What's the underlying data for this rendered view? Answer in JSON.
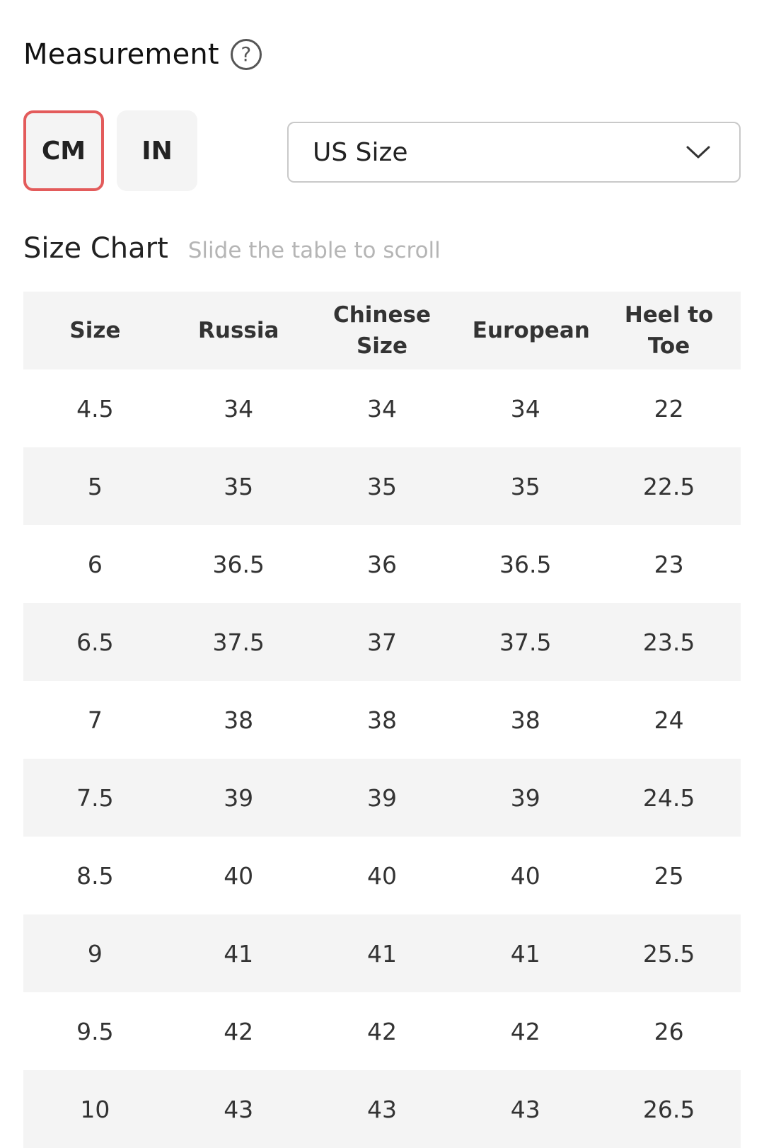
{
  "header": {
    "title": "Measurement",
    "help_icon": "question-circle-icon",
    "help_glyph": "?"
  },
  "units": {
    "options": [
      "CM",
      "IN"
    ],
    "selected": "CM",
    "active_border_color": "#e35b5b"
  },
  "size_select": {
    "value": "US Size",
    "icon": "chevron-down-icon"
  },
  "size_chart": {
    "title": "Size Chart",
    "hint": "Slide the table to scroll",
    "columns": [
      "Size",
      "Russia",
      "Chinese Size",
      "European",
      "Heel to Toe"
    ],
    "rows": [
      [
        "4.5",
        "34",
        "34",
        "34",
        "22"
      ],
      [
        "5",
        "35",
        "35",
        "35",
        "22.5"
      ],
      [
        "6",
        "36.5",
        "36",
        "36.5",
        "23"
      ],
      [
        "6.5",
        "37.5",
        "37",
        "37.5",
        "23.5"
      ],
      [
        "7",
        "38",
        "38",
        "38",
        "24"
      ],
      [
        "7.5",
        "39",
        "39",
        "39",
        "24.5"
      ],
      [
        "8.5",
        "40",
        "40",
        "40",
        "25"
      ],
      [
        "9",
        "41",
        "41",
        "41",
        "25.5"
      ],
      [
        "9.5",
        "42",
        "42",
        "42",
        "26"
      ],
      [
        "10",
        "43",
        "43",
        "43",
        "26.5"
      ]
    ]
  }
}
